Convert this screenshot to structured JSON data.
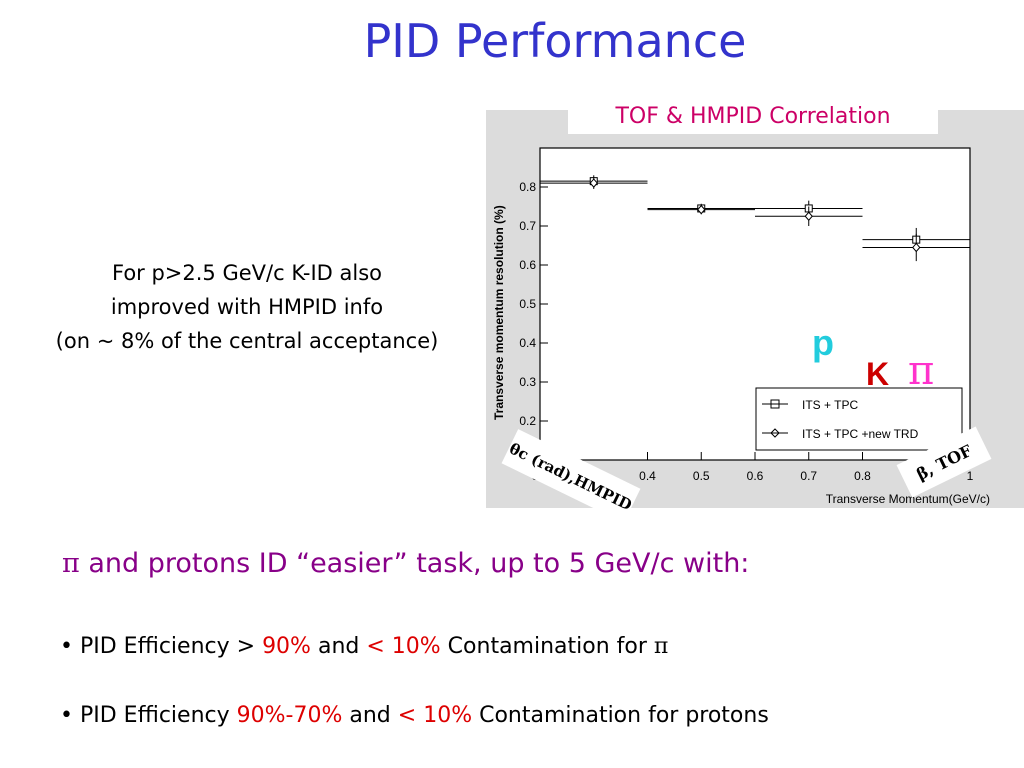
{
  "title": "PID Performance",
  "note": {
    "line1": "For p>2.5 GeV/c  K-ID also",
    "line2": "improved with HMPID info",
    "line3": "(on ~ 8% of the central acceptance)"
  },
  "plot": {
    "title": "TOF & HMPID Correlation",
    "theta_label": "θc (rad),HMPID",
    "beta_label": "β, TOF",
    "label_p": "p",
    "label_k": "K",
    "label_pi": "π"
  },
  "chart_data": {
    "type": "scatter",
    "xlabel": "Transverse Momentum(GeV/c)",
    "ylabel": "Transverse momentum resolution (%)",
    "xlim": [
      0.2,
      1.0
    ],
    "ylim": [
      0.1,
      0.9
    ],
    "xticks": [
      "0.2",
      "0.4",
      "0.5",
      "0.6",
      "0.7",
      "0.8",
      "1"
    ],
    "yticks": [
      "0.2",
      "0.3",
      "0.4",
      "0.5",
      "0.6",
      "0.7",
      "0.8"
    ],
    "legend_position": "bottom-right",
    "series": [
      {
        "name": "ITS + TPC",
        "marker": "square",
        "points": [
          {
            "x": 0.3,
            "xlo": 0.2,
            "xhi": 0.4,
            "y": 0.815,
            "err": 0.015
          },
          {
            "x": 0.5,
            "xlo": 0.4,
            "xhi": 0.6,
            "y": 0.745,
            "err": 0.012
          },
          {
            "x": 0.7,
            "xlo": 0.6,
            "xhi": 0.8,
            "y": 0.745,
            "err": 0.02
          },
          {
            "x": 0.9,
            "xlo": 0.8,
            "xhi": 1.0,
            "y": 0.665,
            "err": 0.03
          }
        ]
      },
      {
        "name": "ITS + TPC +new TRD",
        "marker": "diamond",
        "points": [
          {
            "x": 0.3,
            "xlo": 0.2,
            "xhi": 0.4,
            "y": 0.81,
            "err": 0.015
          },
          {
            "x": 0.5,
            "xlo": 0.4,
            "xhi": 0.6,
            "y": 0.742,
            "err": 0.012
          },
          {
            "x": 0.7,
            "xlo": 0.6,
            "xhi": 0.8,
            "y": 0.725,
            "err": 0.025
          },
          {
            "x": 0.9,
            "xlo": 0.8,
            "xhi": 1.0,
            "y": 0.645,
            "err": 0.035
          }
        ]
      }
    ]
  },
  "bullets": {
    "head_pi": "π",
    "head": " and protons ID “easier” task, up to 5 GeV/c with:",
    "b1": {
      "dot": "•",
      "text1": " PID Efficiency > ",
      "red1": "90%",
      "text2": " and ",
      "red2": "< 10%",
      "text3": " Contamination for ",
      "sym": "π"
    },
    "b2": {
      "dot": "•",
      "text1": " PID Efficiency ",
      "red1": "90%-70%",
      "text2": " and ",
      "red2": "< 10%",
      "text3": " Contamination for protons"
    }
  },
  "colors": {
    "title": "#3333cc",
    "plot_title": "#cc0066",
    "p_label": "#22ccdd",
    "k_label": "#cc0000",
    "pi_label": "#ff33cc",
    "bullet_head": "#880088",
    "highlight": "#dd0000"
  }
}
